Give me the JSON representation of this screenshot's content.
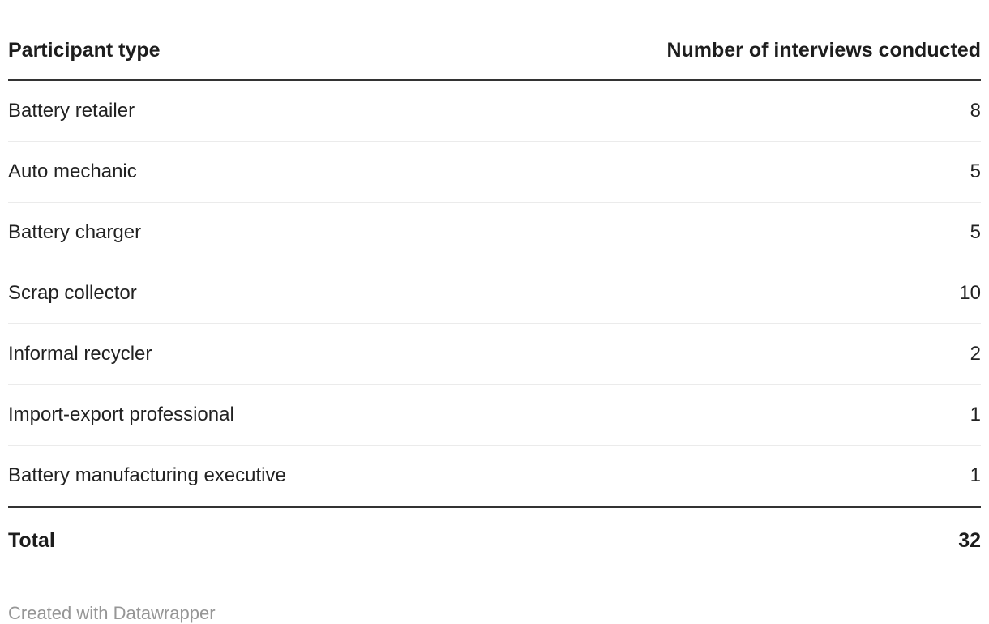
{
  "table": {
    "columns": [
      {
        "label": "Participant type"
      },
      {
        "label": "Number of interviews conducted"
      }
    ],
    "rows": [
      {
        "type": "Battery retailer",
        "count": "8"
      },
      {
        "type": "Auto mechanic",
        "count": "5"
      },
      {
        "type": "Battery charger",
        "count": "5"
      },
      {
        "type": "Scrap collector",
        "count": "10"
      },
      {
        "type": "Informal recycler",
        "count": "2"
      },
      {
        "type": "Import-export professional",
        "count": "1"
      },
      {
        "type": "Battery manufacturing executive",
        "count": "1"
      }
    ],
    "total": {
      "label": "Total",
      "value": "32"
    }
  },
  "footer": {
    "credit": "Created with Datawrapper"
  },
  "colors": {
    "text": "#222222",
    "heading_text": "#1d1d1d",
    "rule_strong": "#333333",
    "rule_light": "#ebebeb",
    "footer_text": "#969696",
    "background": "#ffffff"
  },
  "chart_data": {
    "type": "table",
    "title": "",
    "columns": [
      "Participant type",
      "Number of interviews conducted"
    ],
    "categories": [
      "Battery retailer",
      "Auto mechanic",
      "Battery charger",
      "Scrap collector",
      "Informal recycler",
      "Import-export professional",
      "Battery manufacturing executive"
    ],
    "values": [
      8,
      5,
      5,
      10,
      2,
      1,
      1
    ],
    "total": 32,
    "legend_position": "none",
    "grid": "horizontal-rules"
  }
}
